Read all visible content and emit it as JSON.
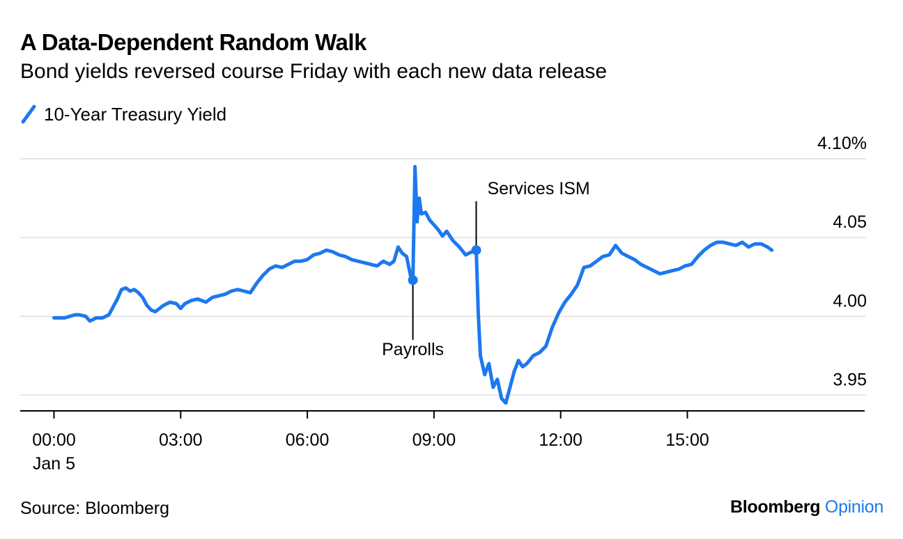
{
  "colors": {
    "line": "#1c78ef",
    "grid": "#e6e6e6",
    "axis": "#000000",
    "brand_accent": "#1c78ef"
  },
  "header": {
    "title": "A Data-Dependent Random Walk",
    "subtitle": "Bond yields reversed course Friday with each new data release"
  },
  "legend": {
    "label": "10-Year Treasury Yield",
    "icon": "slash-line-icon"
  },
  "footer": {
    "source": "Source: Bloomberg",
    "brand_main": "Bloomberg",
    "brand_accent": "Opinion"
  },
  "chart_data": {
    "type": "line",
    "title": "A Data-Dependent Random Walk",
    "subtitle": "Bond yields reversed course Friday with each new data release",
    "xlabel": "",
    "ylabel": "",
    "x_unit": "hours since 00:00 Jan 5",
    "xlim": [
      -0.8,
      19.2
    ],
    "ylim": [
      3.94,
      4.1
    ],
    "grid": "horizontal",
    "legend_position": "top-left",
    "x_ticks": [
      {
        "value": 0,
        "label": "00:00",
        "sublabel": "Jan 5"
      },
      {
        "value": 3,
        "label": "03:00",
        "sublabel": ""
      },
      {
        "value": 6,
        "label": "06:00",
        "sublabel": ""
      },
      {
        "value": 9,
        "label": "09:00",
        "sublabel": ""
      },
      {
        "value": 12,
        "label": "12:00",
        "sublabel": ""
      },
      {
        "value": 15,
        "label": "15:00",
        "sublabel": ""
      }
    ],
    "y_ticks": [
      {
        "value": 3.95,
        "label": "3.95"
      },
      {
        "value": 4.0,
        "label": "4.00"
      },
      {
        "value": 4.05,
        "label": "4.05"
      },
      {
        "value": 4.1,
        "label": "4.10%"
      }
    ],
    "annotations": [
      {
        "label": "Payrolls",
        "x": 8.5,
        "y": 4.023,
        "position": "below"
      },
      {
        "label": "Services ISM",
        "x": 10.0,
        "y": 4.042,
        "position": "above"
      }
    ],
    "series": [
      {
        "name": "10-Year Treasury Yield",
        "x": [
          0,
          0.25,
          0.5,
          0.6,
          0.75,
          0.85,
          1.0,
          1.15,
          1.3,
          1.5,
          1.6,
          1.7,
          1.8,
          1.9,
          2.0,
          2.1,
          2.2,
          2.3,
          2.4,
          2.5,
          2.6,
          2.75,
          2.9,
          3.0,
          3.1,
          3.25,
          3.4,
          3.6,
          3.75,
          3.9,
          4.05,
          4.2,
          4.35,
          4.5,
          4.65,
          4.8,
          4.95,
          5.1,
          5.25,
          5.4,
          5.55,
          5.7,
          5.85,
          6.0,
          6.15,
          6.3,
          6.45,
          6.6,
          6.75,
          6.9,
          7.05,
          7.2,
          7.35,
          7.5,
          7.65,
          7.8,
          7.95,
          8.05,
          8.15,
          8.25,
          8.35,
          8.45,
          8.5,
          8.55,
          8.6,
          8.65,
          8.7,
          8.8,
          8.9,
          9.0,
          9.1,
          9.2,
          9.3,
          9.45,
          9.6,
          9.75,
          9.9,
          10.0,
          10.05,
          10.1,
          10.2,
          10.3,
          10.4,
          10.5,
          10.6,
          10.7,
          10.8,
          10.9,
          11.0,
          11.1,
          11.2,
          11.35,
          11.5,
          11.65,
          11.8,
          11.95,
          12.1,
          12.25,
          12.4,
          12.55,
          12.7,
          12.85,
          13.0,
          13.15,
          13.3,
          13.45,
          13.6,
          13.75,
          13.9,
          14.05,
          14.2,
          14.35,
          14.5,
          14.65,
          14.8,
          14.95,
          15.1,
          15.25,
          15.4,
          15.55,
          15.7,
          15.85,
          16.0,
          16.15,
          16.3,
          16.45,
          16.6,
          16.75,
          16.9,
          17.0
        ],
        "values": [
          3.999,
          3.999,
          4.001,
          4.001,
          4.0,
          3.997,
          3.999,
          3.999,
          4.001,
          4.011,
          4.017,
          4.018,
          4.016,
          4.017,
          4.015,
          4.012,
          4.007,
          4.004,
          4.003,
          4.005,
          4.007,
          4.009,
          4.008,
          4.005,
          4.008,
          4.01,
          4.011,
          4.009,
          4.012,
          4.013,
          4.014,
          4.016,
          4.017,
          4.016,
          4.015,
          4.021,
          4.026,
          4.03,
          4.032,
          4.031,
          4.033,
          4.035,
          4.035,
          4.036,
          4.039,
          4.04,
          4.042,
          4.041,
          4.039,
          4.038,
          4.036,
          4.035,
          4.034,
          4.033,
          4.032,
          4.035,
          4.033,
          4.035,
          4.044,
          4.04,
          4.038,
          4.025,
          4.023,
          4.095,
          4.06,
          4.075,
          4.065,
          4.066,
          4.061,
          4.058,
          4.055,
          4.051,
          4.054,
          4.048,
          4.044,
          4.039,
          4.041,
          4.042,
          4.001,
          3.975,
          3.963,
          3.97,
          3.955,
          3.96,
          3.948,
          3.945,
          3.955,
          3.965,
          3.972,
          3.968,
          3.97,
          3.975,
          3.977,
          3.981,
          3.993,
          4.002,
          4.009,
          4.014,
          4.02,
          4.031,
          4.032,
          4.035,
          4.038,
          4.039,
          4.045,
          4.04,
          4.038,
          4.036,
          4.033,
          4.031,
          4.029,
          4.027,
          4.028,
          4.029,
          4.03,
          4.032,
          4.033,
          4.038,
          4.042,
          4.045,
          4.047,
          4.047,
          4.046,
          4.045,
          4.047,
          4.044,
          4.046,
          4.046,
          4.044,
          4.042
        ]
      }
    ]
  }
}
